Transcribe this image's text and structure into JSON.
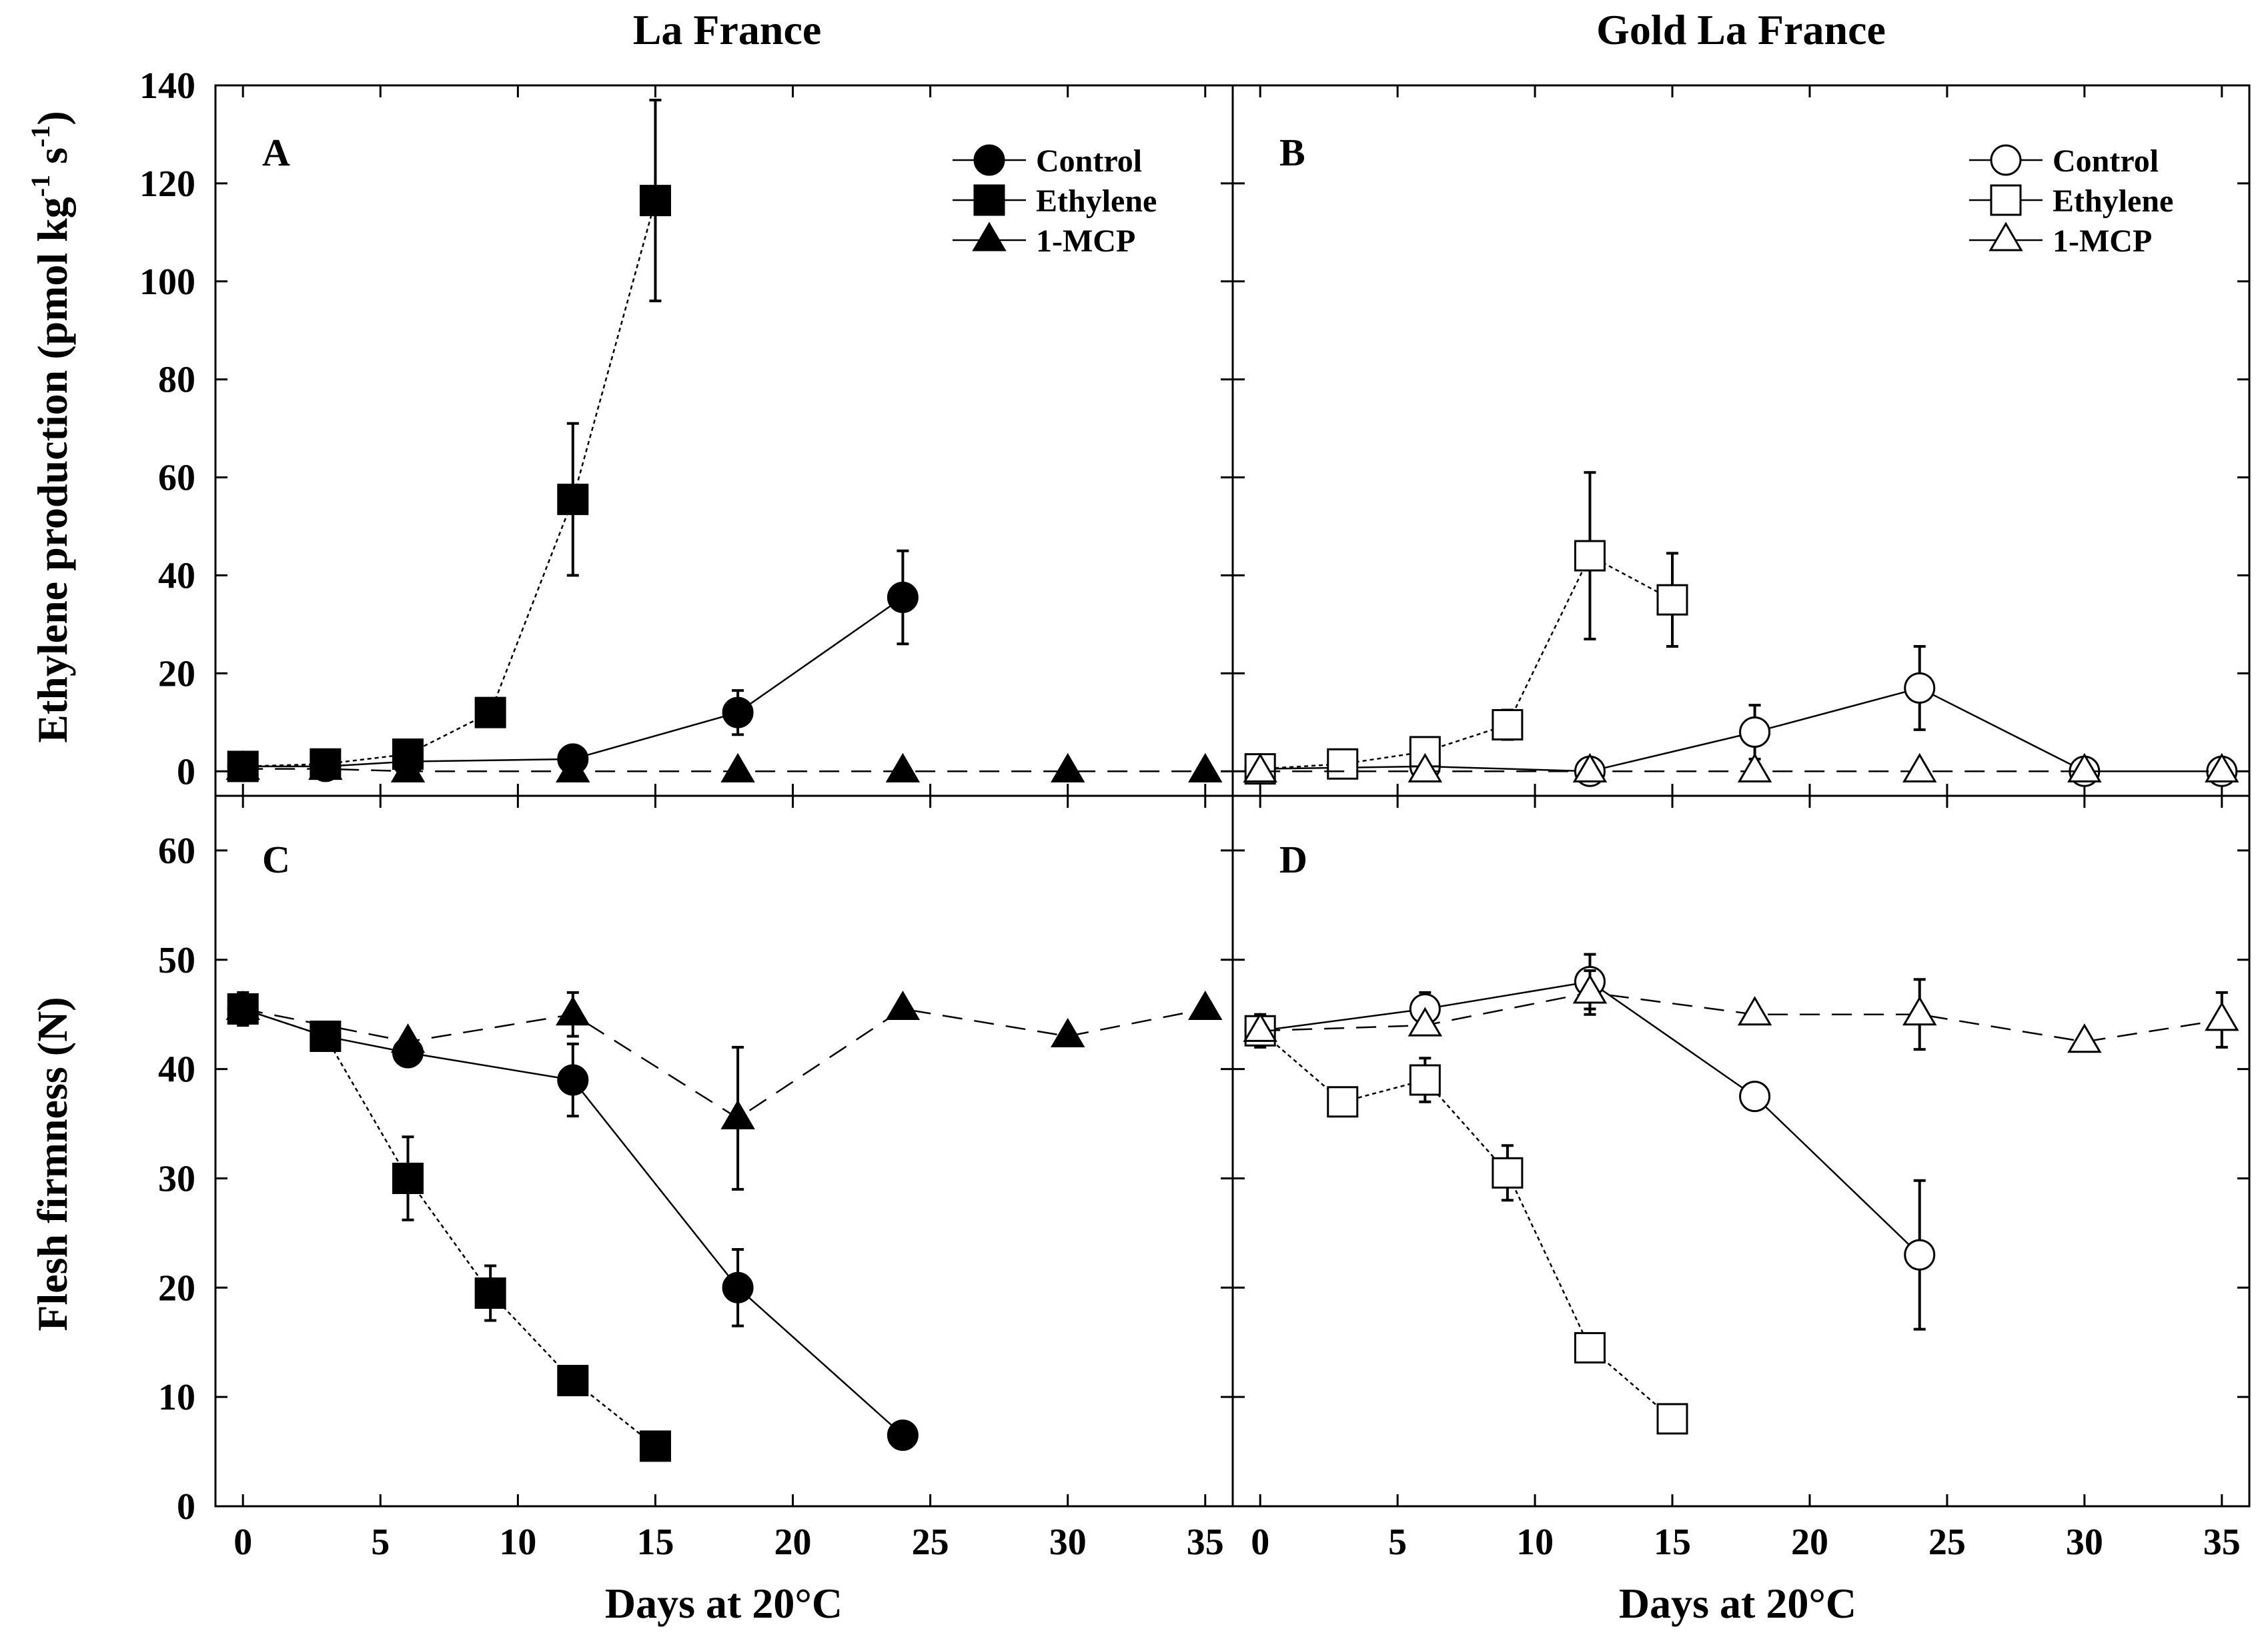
{
  "figure": {
    "column_titles": [
      "La France",
      "Gold La France"
    ],
    "xlabel": "Days at 20°C",
    "ylabel_top": "Ethylene production (pmol kg",
    "ylabel_top_sup1": "-1",
    "ylabel_top_mid": " s",
    "ylabel_top_sup2": "-1",
    "ylabel_top_end": ")",
    "ylabel_bottom": "Flesh firmness (N)"
  },
  "chart_data": [
    {
      "panel": "A",
      "type": "line",
      "title": "La France",
      "filled": true,
      "xlabel": "Days at 20°C",
      "ylabel": "Ethylene production (pmol kg-1 s-1)",
      "xlim": [
        -1,
        36
      ],
      "ylim": [
        -5,
        140
      ],
      "xticks": [
        0,
        5,
        10,
        15,
        20,
        25,
        30,
        35
      ],
      "yticks": [
        0,
        20,
        40,
        60,
        80,
        100,
        120,
        140
      ],
      "legend": "top-right",
      "series": [
        {
          "name": "Control",
          "marker": "circle",
          "x": [
            0,
            3,
            6,
            12,
            18,
            24
          ],
          "y": [
            1,
            1,
            2,
            2.5,
            12,
            35.5
          ],
          "err": [
            0,
            0,
            0,
            1,
            4.5,
            9.5
          ]
        },
        {
          "name": "Ethylene",
          "marker": "square",
          "x": [
            0,
            3,
            6,
            9,
            12,
            15
          ],
          "y": [
            1,
            1.5,
            3.5,
            12,
            55.5,
            116.5
          ],
          "err": [
            0,
            0,
            0,
            1,
            15.5,
            20.5
          ]
        },
        {
          "name": "1-MCP",
          "marker": "triangle",
          "x": [
            0,
            3,
            6,
            12,
            18,
            24,
            30,
            35
          ],
          "y": [
            0.5,
            0.5,
            0,
            0,
            0,
            0,
            0,
            0
          ],
          "err": [
            0,
            0,
            0,
            0,
            0,
            0,
            0,
            0
          ]
        }
      ]
    },
    {
      "panel": "B",
      "type": "line",
      "title": "Gold La France",
      "filled": false,
      "xlabel": "Days at 20°C",
      "ylabel": "Ethylene production (pmol kg-1 s-1)",
      "xlim": [
        -1,
        36
      ],
      "ylim": [
        -5,
        140
      ],
      "xticks": [
        0,
        5,
        10,
        15,
        20,
        25,
        30,
        35
      ],
      "yticks": [
        0,
        20,
        40,
        60,
        80,
        100,
        120,
        140
      ],
      "legend": "top-right",
      "series": [
        {
          "name": "Control",
          "marker": "circle",
          "x": [
            0,
            6,
            12,
            18,
            24,
            30,
            35
          ],
          "y": [
            0.5,
            1,
            0,
            8,
            17,
            0,
            0
          ],
          "err": [
            0,
            0,
            0,
            5.5,
            8.5,
            0,
            0
          ]
        },
        {
          "name": "Ethylene",
          "marker": "square",
          "x": [
            0,
            3,
            6,
            9,
            12,
            15
          ],
          "y": [
            0.5,
            1.5,
            4,
            9.5,
            44,
            35
          ],
          "err": [
            0,
            0,
            0,
            3,
            17,
            9.5
          ]
        },
        {
          "name": "1-MCP",
          "marker": "triangle",
          "x": [
            0,
            6,
            12,
            18,
            24,
            30,
            35
          ],
          "y": [
            0,
            0,
            0,
            0,
            0,
            0,
            0
          ],
          "err": [
            0,
            0,
            0,
            0,
            0,
            0,
            0
          ]
        }
      ]
    },
    {
      "panel": "C",
      "type": "line",
      "title": "",
      "filled": true,
      "xlabel": "Days at 20°C",
      "ylabel": "Flesh firmness (N)",
      "xlim": [
        -1,
        36
      ],
      "ylim": [
        0,
        65
      ],
      "xticks": [
        0,
        5,
        10,
        15,
        20,
        25,
        30,
        35
      ],
      "yticks": [
        0,
        10,
        20,
        30,
        40,
        50,
        60
      ],
      "series": [
        {
          "name": "Control",
          "marker": "circle",
          "x": [
            0,
            3,
            6,
            12,
            18,
            24
          ],
          "y": [
            45.5,
            43,
            41.5,
            39,
            20,
            6.5
          ],
          "err": [
            0,
            0,
            1,
            3.3,
            3.5,
            0
          ]
        },
        {
          "name": "Ethylene",
          "marker": "square",
          "x": [
            0,
            3,
            6,
            9,
            12,
            15
          ],
          "y": [
            45.5,
            43,
            30,
            19.5,
            11.5,
            5.5
          ],
          "err": [
            1.5,
            0,
            3.8,
            2.5,
            0,
            0
          ]
        },
        {
          "name": "1-MCP",
          "marker": "triangle",
          "x": [
            0,
            6,
            12,
            18,
            24,
            30,
            35
          ],
          "y": [
            45.5,
            42.5,
            45,
            35.5,
            45.5,
            43,
            45.5
          ],
          "err": [
            0,
            0,
            2,
            6.5,
            0,
            0,
            0
          ]
        }
      ]
    },
    {
      "panel": "D",
      "type": "line",
      "title": "",
      "filled": false,
      "xlabel": "Days at 20°C",
      "ylabel": "Flesh firmness (N)",
      "xlim": [
        -1,
        36
      ],
      "ylim": [
        0,
        65
      ],
      "xticks": [
        0,
        5,
        10,
        15,
        20,
        25,
        30,
        35
      ],
      "yticks": [
        0,
        10,
        20,
        30,
        40,
        50,
        60
      ],
      "series": [
        {
          "name": "Control",
          "marker": "circle",
          "x": [
            0,
            6,
            12,
            18,
            24
          ],
          "y": [
            43.5,
            45.5,
            48,
            37.5,
            23
          ],
          "err": [
            0,
            1.5,
            2.5,
            0,
            6.8
          ]
        },
        {
          "name": "Ethylene",
          "marker": "square",
          "x": [
            0,
            3,
            6,
            9,
            12,
            15
          ],
          "y": [
            43.5,
            37,
            39,
            30.5,
            14.5,
            8
          ],
          "err": [
            1.5,
            0,
            2,
            2.5,
            0,
            0
          ]
        },
        {
          "name": "1-MCP",
          "marker": "triangle",
          "x": [
            0,
            6,
            12,
            18,
            24,
            30,
            35
          ],
          "y": [
            43.5,
            44,
            47,
            45,
            45,
            42.5,
            44.5
          ],
          "err": [
            0,
            0,
            2,
            0,
            3.2,
            0,
            2.5
          ]
        }
      ]
    }
  ]
}
